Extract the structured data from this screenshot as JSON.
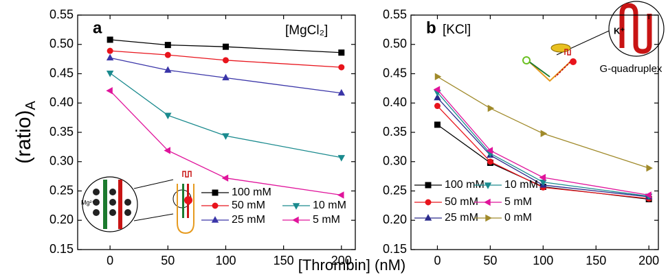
{
  "chart_data": [
    {
      "type": "line",
      "label": "a",
      "annotation": "[MgCl₂]",
      "y_label": {
        "text": "(ratio)",
        "subscript": "A"
      },
      "x": [
        0,
        50,
        100,
        200
      ],
      "xlim": [
        -28,
        212
      ],
      "xticks": [
        0,
        50,
        100,
        150,
        200
      ],
      "ylim": [
        0.15,
        0.55
      ],
      "yticks": [
        0.15,
        {
          "value": 0.2,
          "label": "0.20"
        },
        0.25,
        {
          "value": 0.3,
          "label": "0.30"
        },
        0.35,
        {
          "value": 0.4,
          "label": "0.40"
        },
        0.45,
        {
          "value": 0.5,
          "label": "0.50"
        },
        0.55
      ],
      "inset_label": "Mg²⁺",
      "series": [
        {
          "name": "100 mM",
          "color": "#000000",
          "marker": "square",
          "values": [
            0.508,
            0.499,
            0.496,
            0.486
          ]
        },
        {
          "name": "50 mM",
          "color": "#e8141c",
          "marker": "circle",
          "values": [
            0.489,
            0.482,
            0.473,
            0.461
          ]
        },
        {
          "name": "25 mM",
          "color": "#3a35a8",
          "marker": "triangle-up",
          "values": [
            0.477,
            0.456,
            0.443,
            0.417
          ]
        },
        {
          "name": "10 mM",
          "color": "#1a8a8e",
          "marker": "triangle-down",
          "values": [
            0.451,
            0.379,
            0.344,
            0.307
          ]
        },
        {
          "name": "5 mM",
          "color": "#e0149b",
          "marker": "triangle-left",
          "values": [
            0.421,
            0.319,
            0.272,
            0.243
          ]
        }
      ]
    },
    {
      "type": "line",
      "label": "b",
      "annotation": "[KCl]",
      "x": [
        0,
        50,
        100,
        200
      ],
      "xlim": [
        -25,
        209
      ],
      "xticks": [
        0,
        50,
        100,
        150,
        200
      ],
      "ylim": [
        0.15,
        0.55
      ],
      "yticks": [
        0.15,
        {
          "value": 0.2,
          "label": "0.20"
        },
        0.25,
        {
          "value": 0.3,
          "label": "0.30"
        },
        0.35,
        {
          "value": 0.4,
          "label": "0.40"
        },
        0.45,
        {
          "value": 0.5,
          "label": "0.50"
        },
        0.55
      ],
      "inset_label": "K⁺",
      "inset_caption": "G-quadruplex",
      "series": [
        {
          "name": "100 mM",
          "color": "#000000",
          "marker": "square",
          "values": [
            0.363,
            0.298,
            0.257,
            0.236
          ]
        },
        {
          "name": "50 mM",
          "color": "#e8141c",
          "marker": "circle",
          "values": [
            0.395,
            0.3,
            0.256,
            0.237
          ]
        },
        {
          "name": "25 mM",
          "color": "#2a2a8c",
          "marker": "triangle-up",
          "values": [
            0.409,
            0.311,
            0.26,
            0.24
          ]
        },
        {
          "name": "10 mM",
          "color": "#1a8a8e",
          "marker": "triangle-down",
          "values": [
            0.418,
            0.314,
            0.265,
            0.241
          ]
        },
        {
          "name": "5 mM",
          "color": "#e0149b",
          "marker": "triangle-left",
          "values": [
            0.423,
            0.319,
            0.273,
            0.243
          ]
        },
        {
          "name": "0 mM",
          "color": "#a08a2a",
          "marker": "triangle-right",
          "values": [
            0.445,
            0.391,
            0.348,
            0.289
          ]
        }
      ]
    }
  ],
  "x_label": "[Thrombin] (nM)"
}
